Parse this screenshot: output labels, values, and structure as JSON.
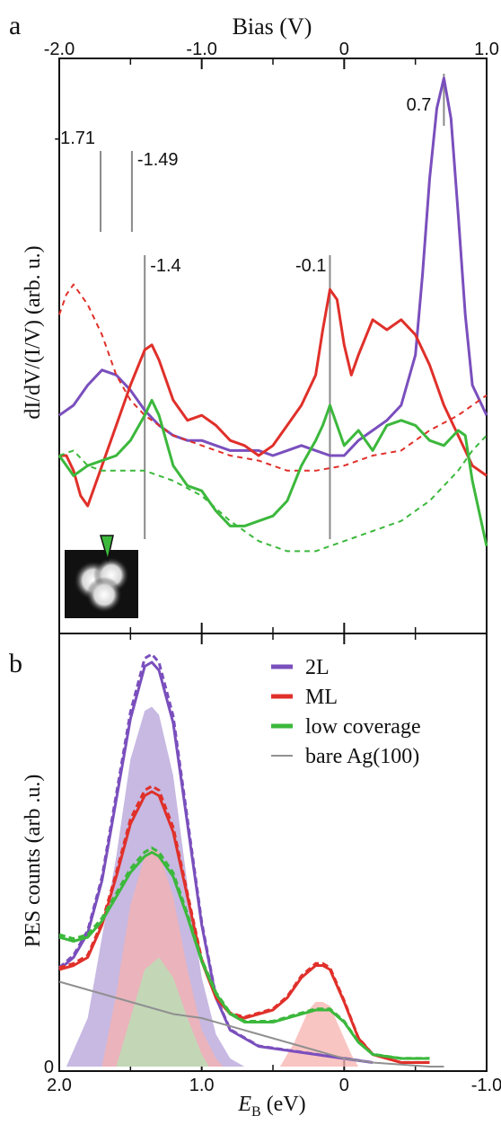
{
  "chart_data": [
    {
      "panel": "a",
      "type": "line",
      "xlabel": "Bias (V)",
      "ylabel": "dI/dV/(I/V) (arb. u.)",
      "xlim": [
        -2.0,
        1.0
      ],
      "xticks": [
        "-2.0",
        "-1.0",
        "0",
        "1.0"
      ],
      "y_units": "arbitrary, offset traces",
      "series": [
        {
          "key": "purple_solid",
          "color": "#7a4fbd",
          "style": "solid",
          "x": [
            -2.0,
            -1.9,
            -1.8,
            -1.7,
            -1.6,
            -1.5,
            -1.4,
            -1.3,
            -1.2,
            -1.1,
            -1.0,
            -0.9,
            -0.8,
            -0.7,
            -0.6,
            -0.5,
            -0.4,
            -0.3,
            -0.2,
            -0.1,
            0.0,
            0.1,
            0.2,
            0.3,
            0.4,
            0.5,
            0.55,
            0.6,
            0.65,
            0.7,
            0.75,
            0.8,
            0.85,
            0.9,
            1.0
          ],
          "y": [
            0.38,
            0.4,
            0.44,
            0.47,
            0.46,
            0.43,
            0.39,
            0.36,
            0.34,
            0.33,
            0.33,
            0.32,
            0.31,
            0.31,
            0.31,
            0.3,
            0.31,
            0.32,
            0.31,
            0.3,
            0.3,
            0.33,
            0.35,
            0.37,
            0.4,
            0.5,
            0.66,
            0.85,
            0.99,
            1.05,
            0.97,
            0.78,
            0.58,
            0.44,
            0.38
          ]
        },
        {
          "key": "red_solid",
          "color": "#e0302a",
          "style": "solid",
          "x": [
            -2.0,
            -1.95,
            -1.9,
            -1.85,
            -1.8,
            -1.7,
            -1.6,
            -1.5,
            -1.4,
            -1.35,
            -1.3,
            -1.2,
            -1.1,
            -1.0,
            -0.9,
            -0.8,
            -0.7,
            -0.6,
            -0.5,
            -0.4,
            -0.3,
            -0.2,
            -0.15,
            -0.1,
            -0.05,
            0.0,
            0.05,
            0.1,
            0.2,
            0.3,
            0.4,
            0.5,
            0.6,
            0.7,
            0.8,
            0.9,
            1.0
          ],
          "y": [
            0.3,
            0.3,
            0.27,
            0.22,
            0.2,
            0.28,
            0.36,
            0.44,
            0.51,
            0.52,
            0.49,
            0.41,
            0.37,
            0.38,
            0.36,
            0.33,
            0.32,
            0.3,
            0.32,
            0.36,
            0.4,
            0.46,
            0.55,
            0.63,
            0.61,
            0.52,
            0.46,
            0.5,
            0.57,
            0.55,
            0.57,
            0.54,
            0.48,
            0.4,
            0.34,
            0.28,
            0.26
          ]
        },
        {
          "key": "red_dashed",
          "color": "#e0302a",
          "style": "dashed",
          "x": [
            -2.0,
            -1.95,
            -1.9,
            -1.8,
            -1.7,
            -1.6,
            -1.5,
            -1.4,
            -1.3,
            -1.2,
            -1.0,
            -0.8,
            -0.6,
            -0.4,
            -0.2,
            0.0,
            0.2,
            0.4,
            0.6,
            0.8,
            0.9,
            1.0
          ],
          "y": [
            0.58,
            0.62,
            0.64,
            0.6,
            0.54,
            0.46,
            0.41,
            0.38,
            0.36,
            0.34,
            0.32,
            0.3,
            0.29,
            0.27,
            0.27,
            0.28,
            0.3,
            0.31,
            0.35,
            0.38,
            0.4,
            0.42
          ]
        },
        {
          "key": "green_solid",
          "color": "#3cb83c",
          "style": "solid",
          "x": [
            -2.0,
            -1.9,
            -1.8,
            -1.7,
            -1.6,
            -1.5,
            -1.4,
            -1.35,
            -1.3,
            -1.2,
            -1.1,
            -1.0,
            -0.9,
            -0.8,
            -0.7,
            -0.6,
            -0.5,
            -0.4,
            -0.3,
            -0.2,
            -0.15,
            -0.1,
            -0.05,
            0.0,
            0.1,
            0.2,
            0.3,
            0.4,
            0.5,
            0.6,
            0.7,
            0.8,
            0.85,
            0.9,
            1.0
          ],
          "y": [
            0.3,
            0.26,
            0.28,
            0.29,
            0.3,
            0.33,
            0.38,
            0.41,
            0.38,
            0.28,
            0.24,
            0.23,
            0.19,
            0.16,
            0.16,
            0.17,
            0.18,
            0.21,
            0.28,
            0.33,
            0.36,
            0.4,
            0.36,
            0.32,
            0.35,
            0.31,
            0.36,
            0.37,
            0.36,
            0.33,
            0.32,
            0.35,
            0.34,
            0.25,
            0.12
          ]
        },
        {
          "key": "green_dashed",
          "color": "#3cb83c",
          "style": "dashed",
          "x": [
            -2.0,
            -1.9,
            -1.8,
            -1.7,
            -1.6,
            -1.5,
            -1.4,
            -1.3,
            -1.2,
            -1.0,
            -0.8,
            -0.6,
            -0.4,
            -0.2,
            0.0,
            0.2,
            0.4,
            0.6,
            0.8,
            0.9,
            1.0
          ],
          "y": [
            0.3,
            0.31,
            0.28,
            0.27,
            0.27,
            0.27,
            0.27,
            0.26,
            0.25,
            0.22,
            0.17,
            0.13,
            0.11,
            0.11,
            0.13,
            0.15,
            0.17,
            0.21,
            0.27,
            0.31,
            0.34
          ]
        }
      ],
      "markers": [
        {
          "label": "-1.71",
          "x": -1.71
        },
        {
          "label": "-1.49",
          "x": -1.49
        },
        {
          "label": "-1.4",
          "x": -1.4
        },
        {
          "label": "-0.1",
          "x": -0.1
        },
        {
          "label": "0.7",
          "x": 0.7
        }
      ]
    },
    {
      "panel": "b",
      "type": "line",
      "xlabel": "E_B (eV)",
      "ylabel": "PES counts (arb .u.)",
      "xlim": [
        2.0,
        -1.0
      ],
      "xticks": [
        "2.0",
        "1.0",
        "0",
        "-1.0"
      ],
      "ytick": "0",
      "legend": {
        "position": "top-right",
        "entries": [
          {
            "label": "2L",
            "color": "#7a4fbd"
          },
          {
            "label": "ML",
            "color": "#e0302a"
          },
          {
            "label": "low coverage",
            "color": "#3cb83c"
          },
          {
            "label": "bare Ag(100)",
            "color": "#909090"
          }
        ]
      },
      "series": [
        {
          "key": "2L_fit",
          "color": "#7a4fbd",
          "style": "solid",
          "fill": "#b4a2d8",
          "x": [
            2.0,
            1.9,
            1.8,
            1.7,
            1.6,
            1.5,
            1.4,
            1.35,
            1.3,
            1.2,
            1.1,
            1.0,
            0.9,
            0.8,
            0.6,
            0.4,
            0.2,
            0.0,
            -0.2
          ],
          "y": [
            0.24,
            0.27,
            0.33,
            0.46,
            0.66,
            0.86,
            0.99,
            1.0,
            0.98,
            0.85,
            0.6,
            0.35,
            0.17,
            0.09,
            0.05,
            0.04,
            0.03,
            0.02,
            0.01
          ]
        },
        {
          "key": "ML_fit",
          "color": "#e0302a",
          "style": "solid",
          "fill": "#f7b2ae",
          "x": [
            2.0,
            1.9,
            1.8,
            1.7,
            1.6,
            1.5,
            1.4,
            1.35,
            1.3,
            1.2,
            1.1,
            1.0,
            0.9,
            0.8,
            0.7,
            0.6,
            0.5,
            0.4,
            0.3,
            0.2,
            0.15,
            0.1,
            0.0,
            -0.1,
            -0.2,
            -0.4,
            -0.6
          ],
          "y": [
            0.24,
            0.25,
            0.27,
            0.35,
            0.47,
            0.6,
            0.67,
            0.68,
            0.67,
            0.58,
            0.42,
            0.26,
            0.17,
            0.13,
            0.12,
            0.13,
            0.14,
            0.17,
            0.22,
            0.25,
            0.25,
            0.24,
            0.16,
            0.07,
            0.03,
            0.01,
            0.01
          ]
        },
        {
          "key": "low_coverage_fit",
          "color": "#3cb83c",
          "style": "solid",
          "fill": "#b6e3b6",
          "x": [
            2.0,
            1.9,
            1.8,
            1.7,
            1.6,
            1.5,
            1.4,
            1.35,
            1.3,
            1.2,
            1.1,
            1.0,
            0.9,
            0.8,
            0.7,
            0.6,
            0.5,
            0.4,
            0.3,
            0.2,
            0.1,
            0.0,
            -0.1,
            -0.2,
            -0.4,
            -0.6
          ],
          "y": [
            0.32,
            0.31,
            0.32,
            0.36,
            0.42,
            0.48,
            0.52,
            0.53,
            0.52,
            0.47,
            0.37,
            0.26,
            0.18,
            0.13,
            0.11,
            0.11,
            0.11,
            0.12,
            0.13,
            0.14,
            0.14,
            0.11,
            0.06,
            0.03,
            0.02,
            0.02
          ]
        },
        {
          "key": "bare_Ag100",
          "color": "#909090",
          "style": "solid",
          "x": [
            2.0,
            1.8,
            1.6,
            1.4,
            1.2,
            1.0,
            0.8,
            0.6,
            0.4,
            0.2,
            0.0,
            -0.2,
            -0.4,
            -0.6,
            -0.7
          ],
          "y": [
            0.21,
            0.19,
            0.17,
            0.15,
            0.13,
            0.12,
            0.1,
            0.08,
            0.06,
            0.04,
            0.02,
            0.01,
            0.005,
            0.0,
            0.0
          ]
        }
      ]
    }
  ]
}
